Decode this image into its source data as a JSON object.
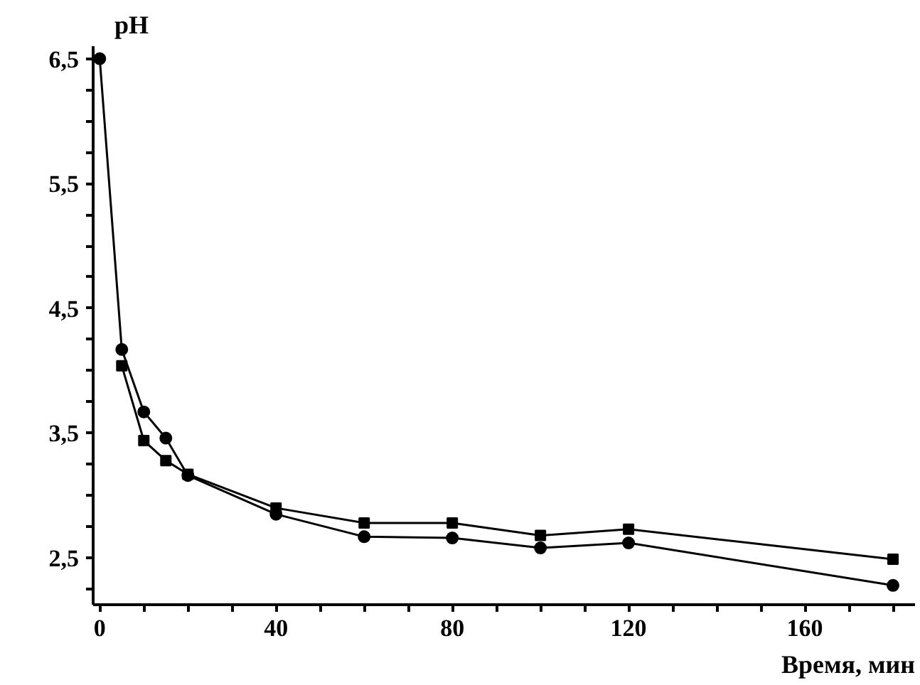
{
  "chart_data": {
    "type": "line",
    "xlabel": "Время, мин",
    "ylabel": "pH",
    "series": [
      {
        "color": "#000000",
        "marker": "circle",
        "x": [
          0,
          5,
          10,
          15,
          20,
          40,
          60,
          80,
          100,
          120,
          180
        ],
        "values": [
          6.5,
          4.17,
          3.67,
          3.46,
          3.16,
          2.85,
          2.67,
          2.66,
          2.58,
          2.62,
          2.28
        ]
      },
      {
        "color": "#000000",
        "marker": "square",
        "x": [
          5,
          10,
          15,
          20,
          40,
          60,
          80,
          100,
          120,
          180
        ],
        "values": [
          4.04,
          3.44,
          3.28,
          3.17,
          2.9,
          2.78,
          2.78,
          2.68,
          2.73,
          2.49
        ]
      }
    ],
    "xlim": [
      -1.5,
      185
    ],
    "ylim": [
      2.125,
      6.6
    ],
    "xticks": [
      0,
      {
        "value": 10,
        "label": null
      },
      {
        "value": 20,
        "label": null
      },
      {
        "value": 30,
        "label": null
      },
      40,
      {
        "value": 50,
        "label": null
      },
      {
        "value": 60,
        "label": null
      },
      {
        "value": 70,
        "label": null
      },
      80,
      {
        "value": 90,
        "label": null
      },
      {
        "value": 100,
        "label": null
      },
      {
        "value": 110,
        "label": null
      },
      120,
      {
        "value": 130,
        "label": null
      },
      {
        "value": 140,
        "label": null
      },
      {
        "value": 150,
        "label": null
      },
      160,
      {
        "value": 170,
        "label": null
      },
      {
        "value": 180,
        "label": null
      }
    ],
    "yticks": [
      {
        "value": 2.25,
        "label": null
      },
      {
        "value": 2.5,
        "label": "2,5"
      },
      {
        "value": 2.75,
        "label": null
      },
      {
        "value": 3,
        "label": null
      },
      {
        "value": 3.25,
        "label": null
      },
      {
        "value": 3.5,
        "label": "3,5"
      },
      {
        "value": 3.75,
        "label": null
      },
      {
        "value": 4,
        "label": null
      },
      {
        "value": 4.25,
        "label": null
      },
      {
        "value": 4.5,
        "label": "4,5"
      },
      {
        "value": 4.75,
        "label": null
      },
      {
        "value": 5,
        "label": null
      },
      {
        "value": 5.25,
        "label": null
      },
      {
        "value": 5.5,
        "label": "5,5"
      },
      {
        "value": 5.75,
        "label": null
      },
      {
        "value": 6,
        "label": null
      },
      {
        "value": 6.25,
        "label": null
      },
      {
        "value": 6.5,
        "label": "6,5"
      }
    ],
    "grid": false,
    "line_style": "solid"
  }
}
